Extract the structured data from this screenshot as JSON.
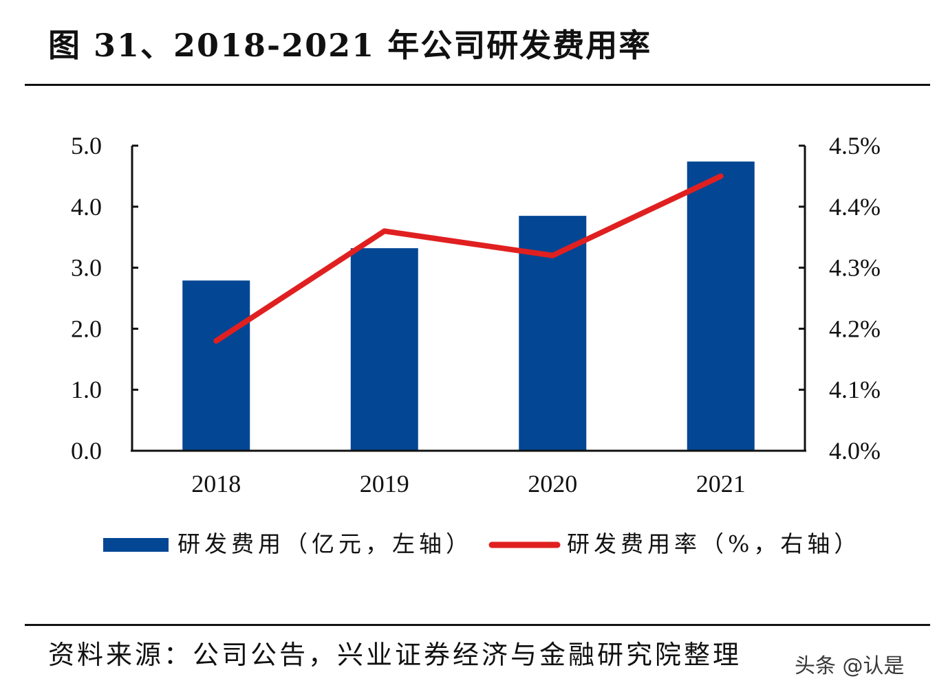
{
  "title": "图 31、2018-2021 年公司研发费用率",
  "source": "资料来源：公司公告，兴业证券经济与金融研究院整理",
  "watermark": "头条 @认是",
  "chart_data": {
    "type": "bar+line",
    "title": "图 31、2018-2021 年公司研发费用率",
    "categories": [
      "2018",
      "2019",
      "2020",
      "2021"
    ],
    "series": [
      {
        "name": "研发费用（亿元，左轴）",
        "type": "bar",
        "axis": "left",
        "color": "#034694",
        "values": [
          2.79,
          3.32,
          3.85,
          4.74
        ]
      },
      {
        "name": "研发费用率（%，右轴）",
        "type": "line",
        "axis": "right",
        "color": "#e02020",
        "values": [
          4.18,
          4.36,
          4.32,
          4.45
        ]
      }
    ],
    "left_axis": {
      "ylim": [
        0,
        5
      ],
      "ticks": [
        "0.0",
        "1.0",
        "2.0",
        "3.0",
        "4.0",
        "5.0"
      ]
    },
    "right_axis": {
      "ylim": [
        4.0,
        4.5
      ],
      "ticks": [
        "4.0%",
        "4.1%",
        "4.2%",
        "4.3%",
        "4.4%",
        "4.5%"
      ]
    },
    "grid": false,
    "legend": "bottom"
  }
}
